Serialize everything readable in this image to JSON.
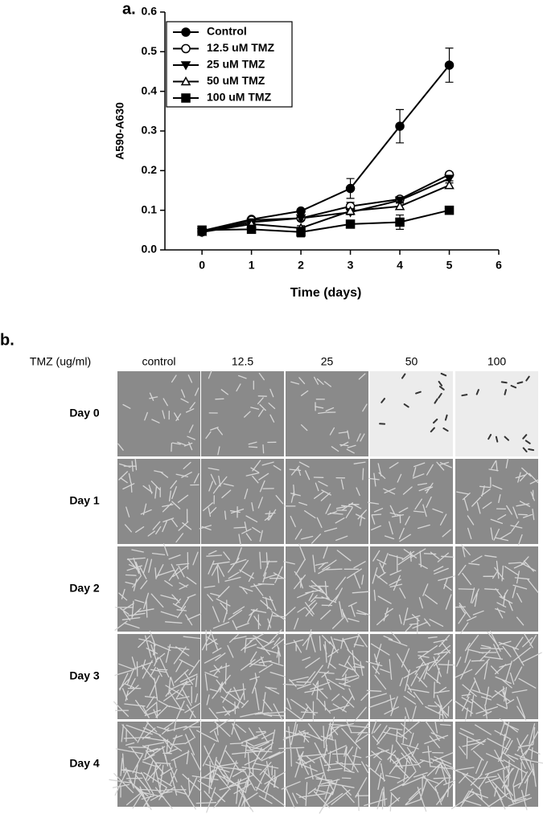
{
  "panel_labels": [
    "a.",
    "b."
  ],
  "chart_data": {
    "type": "line",
    "x_label": "Time (days)",
    "y_label": "A590-A630",
    "x": [
      0,
      1,
      2,
      3,
      4,
      5
    ],
    "xlim": [
      -0.75,
      6
    ],
    "xticks": [
      0,
      1,
      2,
      3,
      4,
      5,
      6
    ],
    "ylim": [
      0,
      0.6
    ],
    "yticks": [
      {
        "value": 0,
        "label": "0.0"
      },
      0.1,
      0.2,
      0.3,
      0.4,
      0.5,
      0.6
    ],
    "grid": false,
    "legend": "upper left",
    "series": [
      {
        "name": "Control",
        "color": "#000000",
        "marker": "circle-filled",
        "values": [
          0.048,
          0.077,
          0.098,
          0.155,
          0.312,
          0.466
        ],
        "errors": [
          0.003,
          0.005,
          0.005,
          0.025,
          0.042,
          0.043
        ]
      },
      {
        "name": "12.5 uM TMZ",
        "color": "#000000",
        "marker": "circle-open",
        "values": [
          0.045,
          0.075,
          0.08,
          0.11,
          0.128,
          0.19
        ],
        "errors": [
          0.003,
          0.004,
          0.005,
          0.01,
          0.006,
          0.006
        ]
      },
      {
        "name": "25 uM TMZ",
        "color": "#000000",
        "marker": "triangle-down-filled",
        "values": [
          0.045,
          0.07,
          0.08,
          0.095,
          0.125,
          0.18
        ],
        "errors": [
          0.003,
          0.004,
          0.005,
          0.006,
          0.006,
          0.006
        ]
      },
      {
        "name": "50 uM TMZ",
        "color": "#000000",
        "marker": "triangle-up-open",
        "values": [
          0.045,
          0.065,
          0.055,
          0.098,
          0.11,
          0.163
        ],
        "errors": [
          0.003,
          0.004,
          0.006,
          0.006,
          0.008,
          0.006
        ]
      },
      {
        "name": "100 uM TMZ",
        "color": "#000000",
        "marker": "square-filled",
        "values": [
          0.05,
          0.052,
          0.045,
          0.065,
          0.07,
          0.1
        ],
        "errors": [
          0.002,
          0.003,
          0.012,
          0.005,
          0.018,
          0.003
        ]
      }
    ]
  },
  "micrographs": {
    "row_header": "TMZ (ug/ml)",
    "columns": [
      "control",
      "12.5",
      "25",
      "50",
      "100"
    ],
    "rows": [
      "Day 0",
      "Day 1",
      "Day 2",
      "Day 3",
      "Day 4"
    ]
  }
}
